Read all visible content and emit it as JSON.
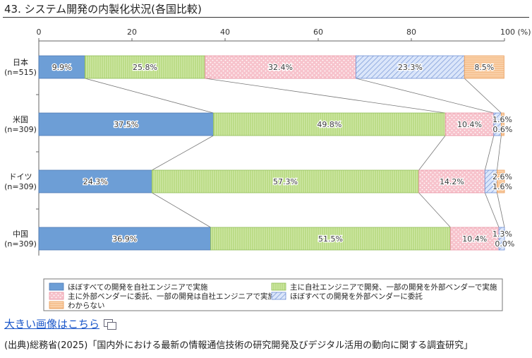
{
  "header": {
    "title": "43. システム開発の内製化状況(各国比較)"
  },
  "link": {
    "label": "大きい画像はこちら"
  },
  "source": {
    "text": "(出典)総務省(2025)「国内外における最新の情報通信技術の研究開発及びデジタル活用の動向に関する調査研究」"
  },
  "colors": {
    "s1": "#6d9ed6",
    "s2": "#c7e39a",
    "s3": "#f7c3cc",
    "s4": "#b9cdf0",
    "s5": "#f8c79b"
  },
  "chart_data": {
    "type": "bar",
    "orientation": "horizontal",
    "stacked": true,
    "xlim": [
      0,
      100
    ],
    "xticks": [
      "0",
      "20",
      "40",
      "60",
      "80",
      "100 (%)"
    ],
    "categories": [
      {
        "name": "日本",
        "n": "(n=515)"
      },
      {
        "name": "米国",
        "n": "(n=309)"
      },
      {
        "name": "ドイツ",
        "n": "(n=309)"
      },
      {
        "name": "中国",
        "n": "(n=309)"
      }
    ],
    "series": [
      {
        "name": "ほぼすべての開発を自社エンジニアで実施",
        "values": [
          9.9,
          37.5,
          24.3,
          36.9
        ],
        "labels": [
          "9.9%",
          "37.5%",
          "24.3%",
          "36.9%"
        ]
      },
      {
        "name": "主に自社エンジニアで開発、一部の開発を外部ベンダーで実施",
        "values": [
          25.8,
          49.8,
          57.3,
          51.5
        ],
        "labels": [
          "25.8%",
          "49.8%",
          "57.3%",
          "51.5%"
        ]
      },
      {
        "name": "主に外部ベンダーに委託、一部の開発は自社エンジニアで実施",
        "values": [
          32.4,
          10.4,
          14.2,
          10.4
        ],
        "labels": [
          "32.4%",
          "10.4%",
          "14.2%",
          "10.4%"
        ]
      },
      {
        "name": "ほぼすべての開発を外部ベンダーに委託",
        "values": [
          23.3,
          1.6,
          2.6,
          1.3
        ],
        "labels": [
          "23.3%",
          "1.6%",
          "2.6%",
          "1.3%"
        ]
      },
      {
        "name": "わからない",
        "values": [
          8.5,
          0.6,
          1.6,
          0.0
        ],
        "labels": [
          "8.5%",
          "0.6%",
          "1.6%",
          "0.0%"
        ]
      }
    ],
    "grid": false,
    "legend": "bottom"
  }
}
